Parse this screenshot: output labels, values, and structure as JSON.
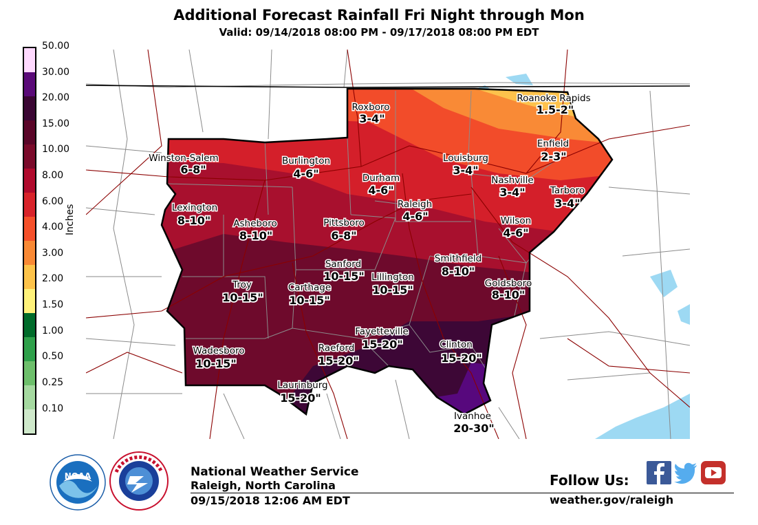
{
  "header": {
    "title": "Additional Forecast Rainfall Fri Night through Mon",
    "subtitle": "Valid: 09/14/2018 08:00 PM - 09/17/2018 08:00 PM EDT"
  },
  "legend": {
    "title": "Inches",
    "labels": [
      "50.00",
      "30.00",
      "20.00",
      "15.00",
      "10.00",
      "8.00",
      "6.00",
      "4.00",
      "3.00",
      "2.00",
      "1.50",
      "1.00",
      "0.50",
      "0.25",
      "0.10"
    ],
    "colors": [
      "#ffd9ff",
      "#5a0a78",
      "#3a0633",
      "#5a0528",
      "#7a0a2a",
      "#b00a2c",
      "#d8232a",
      "#f5502a",
      "#f98935",
      "#fdc34a",
      "#fff27a",
      "#006b2a",
      "#2ea04a",
      "#6dbf6b",
      "#a5d9a0",
      "#cfe9cb"
    ]
  },
  "map_colors": {
    "20-30": "#57087d",
    "15-20": "#3d0736",
    "10-15": "#6e0a2c",
    "8-10": "#a8102e",
    "6-8": "#d41f2a",
    "4-6": "#f24c2a",
    "3-4": "#f98a36",
    "2-3": "#fdc24c",
    "water": "#9dd9f3",
    "county": "#808080",
    "road": "#8b0000"
  },
  "cities": [
    {
      "name": "Roxboro",
      "amount": "3-4\""
    },
    {
      "name": "Roanoke Rapids",
      "amount": "1.5-2\""
    },
    {
      "name": "Enfield",
      "amount": "2-3\""
    },
    {
      "name": "Winston-Salem",
      "amount": "6-8\""
    },
    {
      "name": "Burlington",
      "amount": "4-6\""
    },
    {
      "name": "Louisburg",
      "amount": "3-4\""
    },
    {
      "name": "Durham",
      "amount": "4-6\""
    },
    {
      "name": "Nashville",
      "amount": "3-4\""
    },
    {
      "name": "Tarboro",
      "amount": "3-4\""
    },
    {
      "name": "Raleigh",
      "amount": "4-6\""
    },
    {
      "name": "Lexington",
      "amount": "8-10\""
    },
    {
      "name": "Asheboro",
      "amount": "8-10\""
    },
    {
      "name": "Pittsboro",
      "amount": "6-8\""
    },
    {
      "name": "Wilson",
      "amount": "4-6\""
    },
    {
      "name": "Sanford",
      "amount": "10-15\""
    },
    {
      "name": "Smithfield",
      "amount": "8-10\""
    },
    {
      "name": "Lillington",
      "amount": "10-15\""
    },
    {
      "name": "Troy",
      "amount": "10-15\""
    },
    {
      "name": "Carthage",
      "amount": "10-15\""
    },
    {
      "name": "Goldsboro",
      "amount": "8-10\""
    },
    {
      "name": "Fayetteville",
      "amount": "15-20\""
    },
    {
      "name": "Clinton",
      "amount": "15-20\""
    },
    {
      "name": "Wadesboro",
      "amount": "10-15\""
    },
    {
      "name": "Raeford",
      "amount": "15-20\""
    },
    {
      "name": "Laurinburg",
      "amount": "15-20\""
    },
    {
      "name": "Ivanhoe",
      "amount": "20-30\""
    }
  ],
  "footer": {
    "agency": "National Weather Service",
    "office": "Raleigh, North Carolina",
    "issued": "09/15/2018 12:06 AM EDT",
    "follow_label": "Follow Us:",
    "website": "weather.gov/raleigh"
  },
  "icons": [
    "noaa-logo",
    "nws-logo",
    "facebook-icon",
    "twitter-icon",
    "youtube-icon"
  ]
}
